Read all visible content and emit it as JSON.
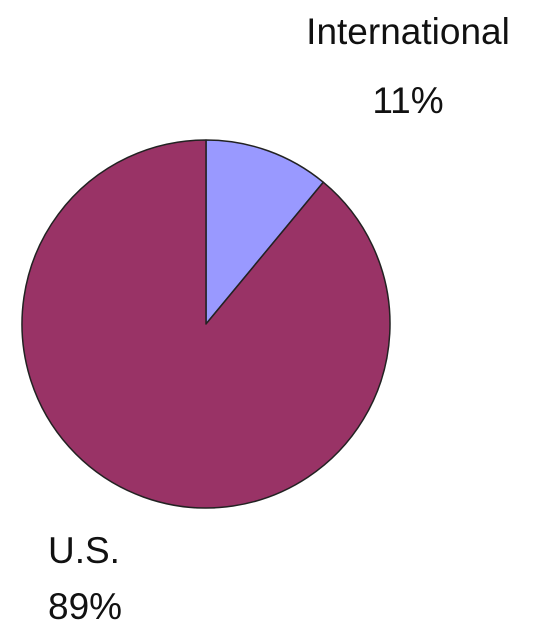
{
  "chart_data": {
    "type": "pie",
    "title": "",
    "start_angle_deg": 0,
    "direction": "clockwise",
    "legend": "none",
    "slices": [
      {
        "label": "International",
        "value": 11,
        "value_label": "11%",
        "color": "#9999ff"
      },
      {
        "label": "U.S.",
        "value": 89,
        "value_label": "89%",
        "color": "#993366"
      }
    ]
  }
}
